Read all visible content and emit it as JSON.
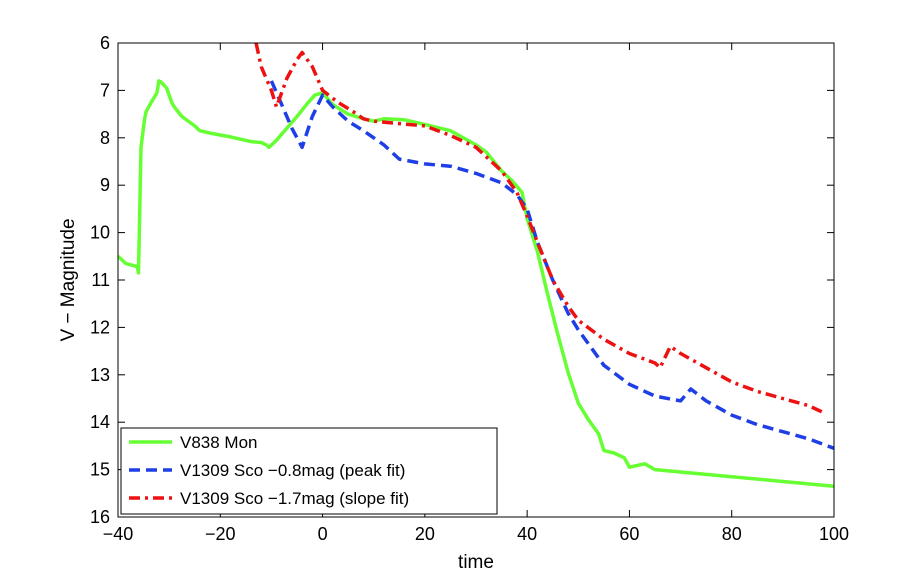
{
  "chart_data": {
    "type": "line",
    "title": "",
    "xlabel": "time",
    "ylabel": "V − Magnitude",
    "xlim": [
      -40,
      100
    ],
    "ylim": [
      6,
      16
    ],
    "y_reversed": true,
    "grid": false,
    "legend_position": "bottom-left",
    "x_ticks": [
      -40,
      -20,
      0,
      20,
      40,
      60,
      80,
      100
    ],
    "x_tick_labels": [
      "−40",
      "−20",
      "0",
      "20",
      "40",
      "60",
      "80",
      "100"
    ],
    "y_ticks": [
      6,
      7,
      8,
      9,
      10,
      11,
      12,
      13,
      14,
      15,
      16
    ],
    "y_tick_labels": [
      "6",
      "7",
      "8",
      "9",
      "10",
      "11",
      "12",
      "13",
      "14",
      "15",
      "16"
    ],
    "series": [
      {
        "name": "V838 Mon",
        "color": "#66ff33",
        "style": "solid",
        "x": [
          -40,
          -38.5,
          -36.2,
          -36,
          -35.5,
          -34.8,
          -34.5,
          -33.5,
          -33.2,
          -32.4,
          -32,
          -31.6,
          -30.5,
          -29.5,
          -29,
          -27.5,
          -25,
          -24,
          -22,
          -18,
          -14,
          -12,
          -11,
          -10.5,
          -9,
          -7,
          -5,
          -3,
          -1.5,
          0,
          2,
          5,
          8,
          10,
          12,
          16,
          20,
          25,
          30,
          32,
          35,
          37,
          39,
          40,
          42,
          44,
          46,
          48,
          50,
          52,
          54,
          55,
          57,
          59,
          60,
          62,
          63,
          65,
          70,
          80,
          90,
          100
        ],
        "y": [
          10.5,
          10.65,
          10.72,
          10.85,
          8.2,
          7.6,
          7.45,
          7.25,
          7.2,
          7.05,
          6.8,
          6.82,
          6.95,
          7.25,
          7.35,
          7.55,
          7.75,
          7.85,
          7.9,
          7.98,
          8.08,
          8.1,
          8.15,
          8.2,
          8.05,
          7.8,
          7.55,
          7.28,
          7.1,
          7.05,
          7.3,
          7.5,
          7.6,
          7.65,
          7.6,
          7.62,
          7.72,
          7.85,
          8.15,
          8.3,
          8.7,
          8.9,
          9.15,
          9.7,
          10.4,
          11.3,
          12.15,
          12.95,
          13.6,
          13.95,
          14.25,
          14.6,
          14.65,
          14.75,
          14.95,
          14.9,
          14.88,
          15.0,
          15.05,
          15.15,
          15.25,
          15.35
        ]
      },
      {
        "name": "V1309 Sco −0.8mag (peak fit)",
        "color": "#1f3fe6",
        "style": "dashed",
        "x": [
          -10,
          -8,
          -6,
          -4,
          -2,
          0,
          2,
          5,
          8,
          10,
          12,
          15,
          20,
          25,
          30,
          35,
          38,
          40,
          42,
          45,
          48,
          50,
          55,
          60,
          65,
          70,
          72,
          75,
          80,
          85,
          90,
          95,
          100
        ],
        "y": [
          6.8,
          7.3,
          7.8,
          8.2,
          7.55,
          7.1,
          7.35,
          7.65,
          7.85,
          8.0,
          8.15,
          8.45,
          8.55,
          8.6,
          8.75,
          8.95,
          9.2,
          9.5,
          10.2,
          11.0,
          11.7,
          12.05,
          12.8,
          13.2,
          13.45,
          13.55,
          13.3,
          13.55,
          13.85,
          14.05,
          14.2,
          14.35,
          14.55
        ]
      },
      {
        "name": "V1309 Sco −1.7mag (slope fit)",
        "color": "#ee1111",
        "style": "dashdot",
        "x": [
          -13,
          -12,
          -10,
          -9,
          -7,
          -5,
          -4,
          -2,
          0,
          3,
          6,
          8,
          10,
          15,
          20,
          25,
          30,
          35,
          38,
          40,
          42,
          45,
          48,
          50,
          55,
          60,
          65,
          66,
          68,
          70,
          75,
          80,
          85,
          90,
          95,
          98
        ],
        "y": [
          6.0,
          6.5,
          7.0,
          7.35,
          6.75,
          6.35,
          6.2,
          6.5,
          7.0,
          7.25,
          7.45,
          7.6,
          7.65,
          7.7,
          7.75,
          7.95,
          8.2,
          8.7,
          9.15,
          9.65,
          10.2,
          11.0,
          11.55,
          11.85,
          12.25,
          12.55,
          12.75,
          12.85,
          12.4,
          12.55,
          12.85,
          13.15,
          13.35,
          13.5,
          13.65,
          13.8
        ]
      }
    ]
  }
}
